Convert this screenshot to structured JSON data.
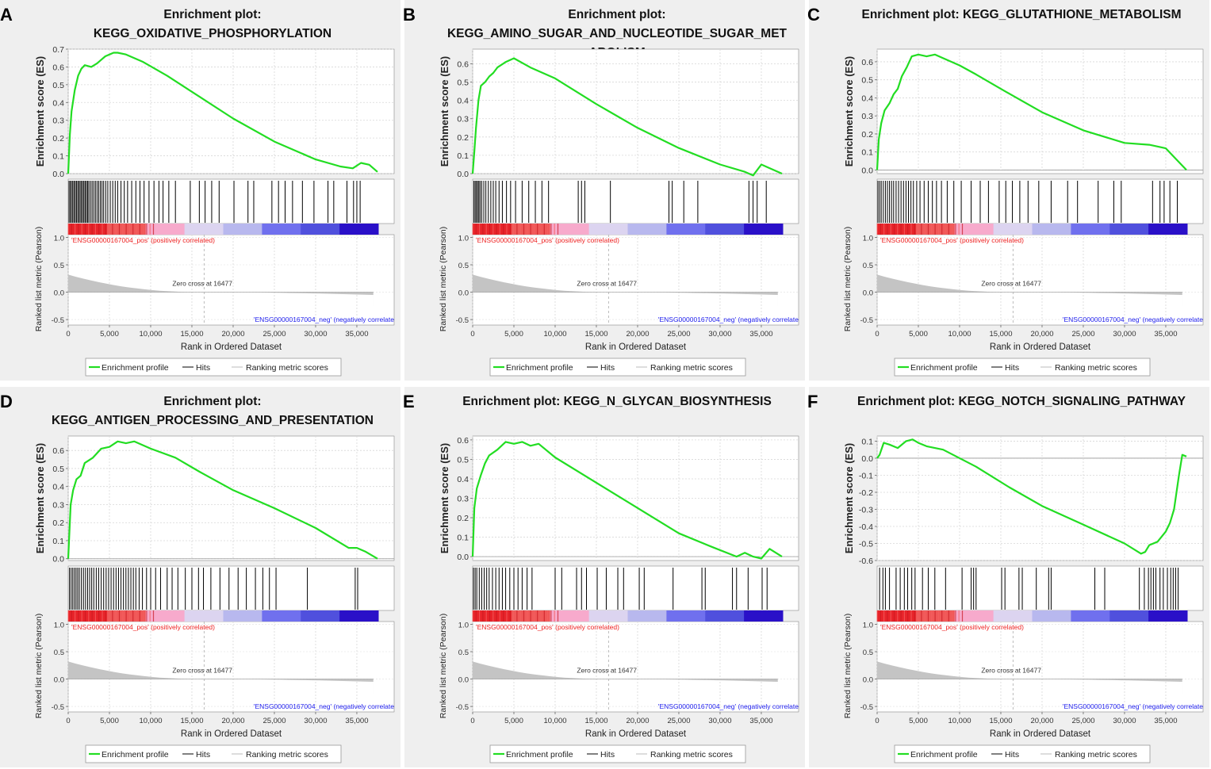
{
  "shared": {
    "es_label": "Enrichment score (ES)",
    "rank_label": "Ranked list metric (Pearson)",
    "x_label": "Rank in Ordered Dataset",
    "x_ticks": [
      0,
      5000,
      10000,
      15000,
      20000,
      25000,
      30000,
      35000
    ],
    "x_tick_labels": [
      "0",
      "5,000",
      "10,000",
      "15,000",
      "20,000",
      "25,000",
      "30,000",
      "35,000"
    ],
    "x_max": 37600,
    "zero_cross_text": "Zero cross at 16477",
    "zero_cross": 16477,
    "pos_text": "'ENSG00000167004_pos' (positively correlated)",
    "neg_text": "'ENSG00000167004_neg' (negatively correlate",
    "rank_ticks": [
      1.0,
      0.5,
      0.0,
      -0.5
    ],
    "rank_tick_labels": [
      "1.0",
      "0.5",
      "0.0",
      "-0.5"
    ],
    "rank_ylim": [
      -0.6,
      1.05
    ],
    "legend": {
      "profile": "Enrichment profile",
      "hits": "Hits",
      "ranking": "Ranking metric scores"
    },
    "colors": {
      "profile": "#22dd22",
      "hits": "#000000",
      "ranking": "#bbbbbb",
      "pos_text": "#ee2222",
      "neg_text": "#2222ee"
    },
    "heatmap_colors": [
      "#e8242a",
      "#f05858",
      "#f7aacc",
      "#dcd4f0",
      "#b8b8ee",
      "#7070ee",
      "#5050dd",
      "#2a10c8"
    ]
  },
  "chart_data": [
    {
      "letter": "A",
      "type": "line",
      "title_lines": [
        "Enrichment plot:",
        "KEGG_OXIDATIVE_PHOSPHORYLATION"
      ],
      "ylim": [
        0,
        0.7
      ],
      "yticks": [
        0.0,
        0.1,
        0.2,
        0.3,
        0.4,
        0.5,
        0.6,
        0.7
      ],
      "ytick_labels": [
        "0.0",
        "0.1",
        "0.2",
        "0.3",
        "0.4",
        "0.5",
        "0.6",
        "0.7"
      ],
      "series": [
        {
          "name": "Enrichment profile",
          "x": [
            0,
            200,
            400,
            800,
            1200,
            1600,
            2000,
            2800,
            3500,
            4500,
            5500,
            6000,
            7000,
            9000,
            12000,
            15000,
            20000,
            25000,
            30000,
            33000,
            34500,
            35500,
            36500,
            37500
          ],
          "y": [
            0,
            0.22,
            0.35,
            0.47,
            0.55,
            0.59,
            0.61,
            0.6,
            0.62,
            0.66,
            0.68,
            0.68,
            0.67,
            0.63,
            0.55,
            0.46,
            0.31,
            0.18,
            0.08,
            0.04,
            0.03,
            0.06,
            0.05,
            0.01
          ]
        }
      ],
      "hits": [
        100,
        250,
        400,
        550,
        700,
        850,
        1000,
        1150,
        1300,
        1450,
        1600,
        1750,
        1900,
        2050,
        2200,
        2350,
        2500,
        2700,
        2900,
        3100,
        3300,
        3500,
        3700,
        3900,
        4100,
        4300,
        4550,
        4800,
        5100,
        5400,
        5700,
        6000,
        6400,
        6800,
        7200,
        7700,
        8200,
        8700,
        9200,
        9800,
        10400,
        11000,
        11500,
        12200,
        13000,
        14800,
        15900,
        16600,
        17400,
        18300,
        20100,
        21800,
        22500,
        24700,
        25500,
        26300,
        27200,
        28400,
        29800,
        31500,
        32200,
        33800,
        34600,
        35000,
        35400
      ]
    },
    {
      "letter": "B",
      "type": "line",
      "title_lines": [
        "Enrichment plot:",
        "KEGG_AMINO_SUGAR_AND_NUCLEOTIDE_SUGAR_MET",
        "ABOLISM"
      ],
      "ylim": [
        0,
        0.68
      ],
      "yticks": [
        0.0,
        0.1,
        0.2,
        0.3,
        0.4,
        0.5,
        0.6
      ],
      "ytick_labels": [
        "0.0",
        "0.1",
        "0.2",
        "0.3",
        "0.4",
        "0.5",
        "0.6"
      ],
      "series": [
        {
          "name": "Enrichment profile",
          "x": [
            0,
            200,
            400,
            700,
            1000,
            1500,
            2000,
            2500,
            3000,
            4000,
            5000,
            7000,
            10000,
            15000,
            20000,
            25000,
            30000,
            33000,
            34000,
            35000,
            36000,
            37500
          ],
          "y": [
            0,
            0.12,
            0.25,
            0.4,
            0.48,
            0.5,
            0.53,
            0.55,
            0.58,
            0.61,
            0.63,
            0.58,
            0.52,
            0.38,
            0.25,
            0.14,
            0.05,
            0.01,
            -0.01,
            0.05,
            0.03,
            0.0
          ]
        }
      ],
      "hits": [
        150,
        300,
        450,
        600,
        750,
        900,
        1100,
        1350,
        1600,
        1900,
        2200,
        2500,
        2800,
        3200,
        3600,
        4100,
        4600,
        5200,
        6000,
        6800,
        7600,
        8400,
        9200,
        12800,
        13200,
        13600,
        16700,
        23800,
        24200,
        25600,
        27300,
        33500,
        34000,
        34500,
        35600
      ]
    },
    {
      "letter": "C",
      "type": "line",
      "title_lines": [
        "Enrichment plot: KEGG_GLUTATHIONE_METABOLISM"
      ],
      "ylim": [
        -0.02,
        0.67
      ],
      "yticks": [
        0.0,
        0.1,
        0.2,
        0.3,
        0.4,
        0.5,
        0.6
      ],
      "ytick_labels": [
        "0.0",
        "0.1",
        "0.2",
        "0.3",
        "0.4",
        "0.5",
        "0.6"
      ],
      "series": [
        {
          "name": "Enrichment profile",
          "x": [
            0,
            200,
            500,
            900,
            1500,
            2000,
            2500,
            3000,
            3600,
            4200,
            5000,
            6000,
            7000,
            8000,
            10000,
            12000,
            15000,
            20000,
            25000,
            30000,
            33000,
            35000,
            37500
          ],
          "y": [
            0,
            0.17,
            0.26,
            0.33,
            0.37,
            0.42,
            0.45,
            0.52,
            0.57,
            0.63,
            0.64,
            0.63,
            0.64,
            0.62,
            0.58,
            0.53,
            0.45,
            0.32,
            0.22,
            0.15,
            0.14,
            0.12,
            0.0
          ]
        }
      ],
      "hits": [
        100,
        300,
        500,
        750,
        1000,
        1250,
        1500,
        1750,
        2000,
        2300,
        2600,
        2900,
        3200,
        3500,
        3800,
        4100,
        4400,
        4800,
        5200,
        5700,
        6200,
        6700,
        7200,
        7800,
        8500,
        9300,
        10200,
        11400,
        12500,
        13500,
        14800,
        15600,
        16400,
        17300,
        18300,
        19600,
        21100,
        23100,
        24300,
        26800,
        28700,
        29600,
        33400,
        34300,
        34800,
        35500,
        36400
      ]
    },
    {
      "letter": "D",
      "type": "line",
      "title_lines": [
        "Enrichment plot:",
        "KEGG_ANTIGEN_PROCESSING_AND_PRESENTATION"
      ],
      "ylim": [
        -0.01,
        0.68
      ],
      "yticks": [
        0.0,
        0.1,
        0.2,
        0.3,
        0.4,
        0.5,
        0.6
      ],
      "ytick_labels": [
        "0.0",
        "0.1",
        "0.2",
        "0.3",
        "0.4",
        "0.5",
        "0.6"
      ],
      "series": [
        {
          "name": "Enrichment profile",
          "x": [
            0,
            300,
            600,
            1000,
            1500,
            2000,
            3000,
            4000,
            5000,
            6000,
            7000,
            8000,
            10000,
            13000,
            16000,
            20000,
            25000,
            30000,
            34000,
            35000,
            36000,
            37500
          ],
          "y": [
            0,
            0.3,
            0.38,
            0.44,
            0.46,
            0.53,
            0.56,
            0.61,
            0.62,
            0.65,
            0.64,
            0.65,
            0.61,
            0.56,
            0.48,
            0.38,
            0.28,
            0.17,
            0.06,
            0.06,
            0.04,
            0.0
          ]
        }
      ],
      "hits": [
        150,
        350,
        550,
        750,
        950,
        1150,
        1350,
        1600,
        1850,
        2100,
        2350,
        2600,
        2850,
        3100,
        3400,
        3700,
        4000,
        4300,
        4600,
        4900,
        5200,
        5500,
        5800,
        6100,
        6400,
        6700,
        7000,
        7300,
        7600,
        7900,
        8200,
        8600,
        9000,
        9500,
        10000,
        10600,
        11200,
        12000,
        12600,
        13300,
        14200,
        15000,
        15800,
        16400,
        17300,
        18400,
        19500,
        20600,
        21600,
        22700,
        23600,
        24400,
        25200,
        29000,
        34800,
        35100
      ]
    },
    {
      "letter": "E",
      "type": "line",
      "title_lines": [
        "Enrichment plot: KEGG_N_GLYCAN_BIOSYNTHESIS"
      ],
      "ylim": [
        -0.02,
        0.62
      ],
      "yticks": [
        0.0,
        0.1,
        0.2,
        0.3,
        0.4,
        0.5,
        0.6
      ],
      "ytick_labels": [
        "0.0",
        "0.1",
        "0.2",
        "0.3",
        "0.4",
        "0.5",
        "0.6"
      ],
      "series": [
        {
          "name": "Enrichment profile",
          "x": [
            0,
            200,
            500,
            1000,
            1500,
            2000,
            3000,
            4000,
            5000,
            6000,
            7000,
            8000,
            10000,
            15000,
            20000,
            25000,
            29000,
            32000,
            33000,
            34000,
            35000,
            36000,
            37500
          ],
          "y": [
            0,
            0.25,
            0.35,
            0.42,
            0.48,
            0.52,
            0.55,
            0.59,
            0.58,
            0.59,
            0.57,
            0.58,
            0.51,
            0.38,
            0.25,
            0.12,
            0.05,
            0.0,
            0.02,
            0.0,
            -0.01,
            0.04,
            0.0
          ]
        }
      ],
      "hits": [
        100,
        300,
        500,
        800,
        1100,
        1400,
        1700,
        2000,
        2400,
        2800,
        3200,
        3600,
        4000,
        4500,
        5000,
        5500,
        6000,
        6600,
        7200,
        10000,
        10800,
        12600,
        13200,
        13800,
        15100,
        16200,
        17600,
        18300,
        20200,
        20800,
        24300,
        27800,
        28200,
        31500,
        32000,
        33400,
        35100,
        35700
      ]
    },
    {
      "letter": "F",
      "type": "line",
      "title_lines": [
        "Enrichment plot: KEGG_NOTCH_SIGNALING_PATHWAY"
      ],
      "ylim": [
        -0.6,
        0.13
      ],
      "yticks": [
        0.1,
        0.0,
        -0.1,
        -0.2,
        -0.3,
        -0.4,
        -0.5,
        -0.6
      ],
      "ytick_labels": [
        "0.1",
        "0.0",
        "-0.1",
        "-0.2",
        "-0.3",
        "-0.4",
        "-0.5",
        "-0.6"
      ],
      "series": [
        {
          "name": "Enrichment profile",
          "x": [
            0,
            300,
            800,
            1500,
            2500,
            3500,
            4300,
            5000,
            6000,
            8000,
            12000,
            16000,
            20000,
            25000,
            30000,
            32000,
            32500,
            33000,
            34000,
            35000,
            35500,
            36000,
            36300,
            36600,
            37000,
            37500
          ],
          "y": [
            0,
            0.02,
            0.09,
            0.08,
            0.06,
            0.1,
            0.11,
            0.09,
            0.07,
            0.05,
            -0.05,
            -0.17,
            -0.28,
            -0.39,
            -0.5,
            -0.56,
            -0.55,
            -0.51,
            -0.49,
            -0.43,
            -0.38,
            -0.3,
            -0.2,
            -0.1,
            0.02,
            0.01
          ]
        }
      ],
      "hits": [
        300,
        700,
        1000,
        1500,
        2300,
        2800,
        3300,
        3700,
        4200,
        4600,
        5500,
        6200,
        7000,
        8300,
        10300,
        11400,
        11700,
        12000,
        15100,
        15500,
        17200,
        17600,
        19300,
        20800,
        21100,
        26400,
        27600,
        31800,
        32400,
        32900,
        33200,
        33500,
        33800,
        34300,
        34700,
        35200,
        35600,
        35900,
        36200,
        36500
      ]
    }
  ]
}
